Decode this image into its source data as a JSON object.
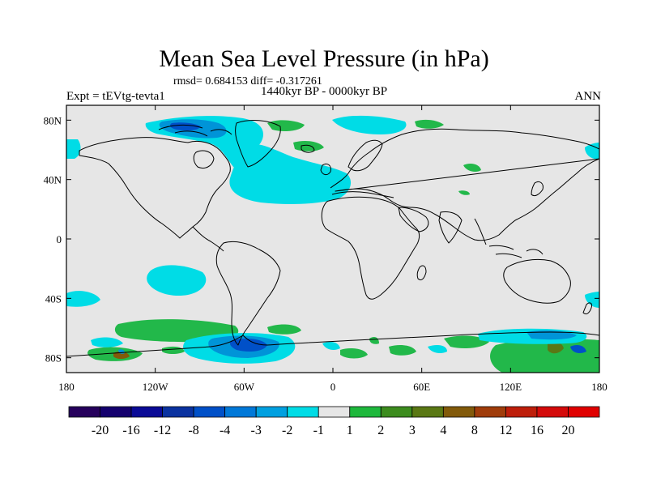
{
  "header": {
    "title": "Mean Sea Level Pressure (in hPa)",
    "stats": "rmsd= 0.684153 diff= -0.317261",
    "experiment": "Expt = tEVtg-tevta1",
    "period": "1440kyr BP - 0000kyr BP",
    "season": "ANN"
  },
  "map": {
    "lon_range": [
      -180,
      180
    ],
    "lat_range": [
      -90,
      90
    ],
    "background_color": "#e6e6e6",
    "x_ticks": [
      {
        "value": -180,
        "label": "180"
      },
      {
        "value": -120,
        "label": "120W"
      },
      {
        "value": -60,
        "label": "60W"
      },
      {
        "value": 0,
        "label": "0"
      },
      {
        "value": 60,
        "label": "60E"
      },
      {
        "value": 120,
        "label": "120E"
      },
      {
        "value": 180,
        "label": "180"
      }
    ],
    "y_ticks": [
      {
        "value": 80,
        "label": "80N"
      },
      {
        "value": 40,
        "label": "40N"
      },
      {
        "value": 0,
        "label": "0"
      },
      {
        "value": -40,
        "label": "40S"
      },
      {
        "value": -80,
        "label": "80S"
      }
    ],
    "anomaly_regions": [
      {
        "name": "north-atlantic-low",
        "bin": "-2",
        "color": "#00d8e0"
      },
      {
        "name": "canadian-arctic-low",
        "bin": "-3",
        "color": "#0094d8"
      },
      {
        "name": "south-pacific-low",
        "bin": "-2",
        "color": "#00d8e0"
      },
      {
        "name": "southern-ocean-high",
        "bin": "2",
        "color": "#22b84a"
      },
      {
        "name": "antarctic-coast-low",
        "bin": "-4",
        "color": "#0060c8"
      },
      {
        "name": "east-antarctica-high",
        "bin": "2",
        "color": "#22b84a"
      }
    ]
  },
  "colorbar": {
    "labels": [
      "-20",
      "-16",
      "-12",
      "-8",
      "-4",
      "-3",
      "-2",
      "-1",
      "1",
      "2",
      "3",
      "4",
      "8",
      "12",
      "16",
      "20"
    ],
    "colors": [
      "#26005c",
      "#14006e",
      "#0a0a96",
      "#0a32a0",
      "#0050c8",
      "#0078d8",
      "#00a0e0",
      "#00dce6",
      "#e6e6e6",
      "#1eb83c",
      "#3c8c1e",
      "#5a7814",
      "#825a0a",
      "#a03c0a",
      "#be1e0a",
      "#d40a0a",
      "#e00000"
    ]
  }
}
